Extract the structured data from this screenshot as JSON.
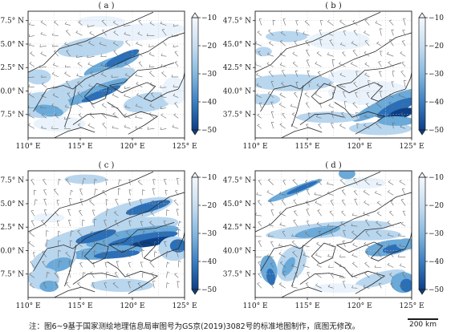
{
  "panels": [
    {
      "id": "a",
      "label": "( a )"
    },
    {
      "id": "b",
      "label": "( b )"
    },
    {
      "id": "c",
      "label": "( c )"
    },
    {
      "id": "d",
      "label": "( d )"
    }
  ],
  "lat_ticks": [
    "47.5° N",
    "45.0° N",
    "42.5° N",
    "40.0° N",
    "37.5° N"
  ],
  "lon_ticks": [
    "110° E",
    "115° E",
    "120° E",
    "125° E"
  ],
  "colorbar_ticks": [
    "−10",
    "−20",
    "−30",
    "−40",
    "−50"
  ],
  "colors": {
    "level_1": "#eaf3fb",
    "level_2": "#b8d6ee",
    "level_3": "#6aa9d8",
    "level_4": "#2a6fb8",
    "level_5": "#0c3f86",
    "border": "#2a2a2a",
    "wind": "#6b6b6b"
  },
  "caption": "注：图6~9基于国家测绘地理信息局审图号为GS京(2019)3082号的标准地图制作，底图无修改。",
  "scalebar": {
    "label": "200 km"
  }
}
